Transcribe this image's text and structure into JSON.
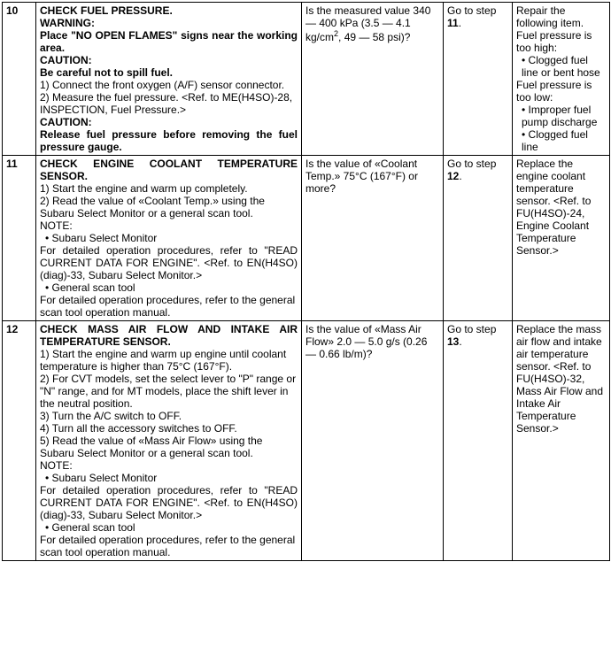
{
  "rows": [
    {
      "step": "10",
      "proc": {
        "title": "CHECK FUEL PRESSURE.",
        "warn_label": "WARNING:",
        "warn_text": "Place \"NO OPEN FLAMES\" signs near the working area.",
        "caution1_label": "CAUTION:",
        "caution1_text": "Be careful not to spill fuel.",
        "s1": "1)   Connect the front oxygen (A/F) sensor connector.",
        "s2": "2)   Measure the fuel pressure. <Ref. to ME(H4SO)-28, INSPECTION, Fuel Pressure.>",
        "caution2_label": "CAUTION:",
        "caution2_text": "Release fuel pressure before removing the fuel pressure gauge."
      },
      "check_pre": "Is the measured value 340 — 400 kPa (3.5 — 4.1 kg/cm",
      "check_post": ", 49 — 58 psi)?",
      "yes_pre": "Go to step ",
      "yes_bold": "11",
      "yes_post": ".",
      "no": {
        "intro": "Repair the following item.",
        "a_label": "Fuel pressure is too high:",
        "a_item": "Clogged fuel line or bent hose",
        "b_label": "Fuel pressure is too low:",
        "b_item1": "Improper fuel pump discharge",
        "b_item2": "Clogged fuel line"
      }
    },
    {
      "step": "11",
      "proc": {
        "title": "CHECK ENGINE COOLANT TEMPERATURE SENSOR.",
        "s1": "1)   Start the engine and warm up completely.",
        "s2": "2)   Read the value of «Coolant Temp.» using the Subaru Select Monitor or a general scan tool.",
        "note_label": "NOTE:",
        "b1": "Subaru Select Monitor",
        "b1_text": "For detailed operation procedures, refer to \"READ CURRENT DATA FOR ENGINE\". <Ref. to EN(H4SO)(diag)-33, Subaru Select Monitor.>",
        "b2": "General scan tool",
        "b2_text": "For detailed operation procedures, refer to the general scan tool operation manual."
      },
      "check": "Is the value of «Coolant Temp.» 75°C (167°F) or more?",
      "yes_pre": "Go to step ",
      "yes_bold": "12",
      "yes_post": ".",
      "no_text": "Replace the engine coolant temperature sensor. <Ref. to FU(H4SO)-24, Engine Coolant Temperature Sensor.>"
    },
    {
      "step": "12",
      "proc": {
        "title": "CHECK MASS AIR FLOW AND INTAKE AIR TEMPERATURE SENSOR.",
        "s1": "1)   Start the engine and warm up engine until coolant temperature is higher than 75°C (167°F).",
        "s2": "2)   For CVT models, set the select lever to \"P\" range or \"N\" range, and for MT models, place the shift lever in the neutral position.",
        "s3": "3)   Turn the A/C switch to OFF.",
        "s4": "4)   Turn all the accessory switches to OFF.",
        "s5": "5)   Read the value of «Mass Air Flow» using the Subaru Select Monitor or a general scan tool.",
        "note_label": "NOTE:",
        "b1": "Subaru Select Monitor",
        "b1_text": "For detailed operation procedures, refer to \"READ CURRENT DATA FOR ENGINE\". <Ref. to EN(H4SO)(diag)-33, Subaru Select Monitor.>",
        "b2": "General scan tool",
        "b2_text": "For detailed operation procedures, refer to the general scan tool operation manual."
      },
      "check": "Is the value of «Mass Air Flow» 2.0 — 5.0 g/s (0.26 — 0.66 lb/m)?",
      "yes_pre": "Go to step ",
      "yes_bold": "13",
      "yes_post": ".",
      "no_text": "Replace the mass air flow and intake air temperature sensor. <Ref. to FU(H4SO)-32, Mass Air Flow and Intake Air Temperature Sensor.>"
    }
  ]
}
